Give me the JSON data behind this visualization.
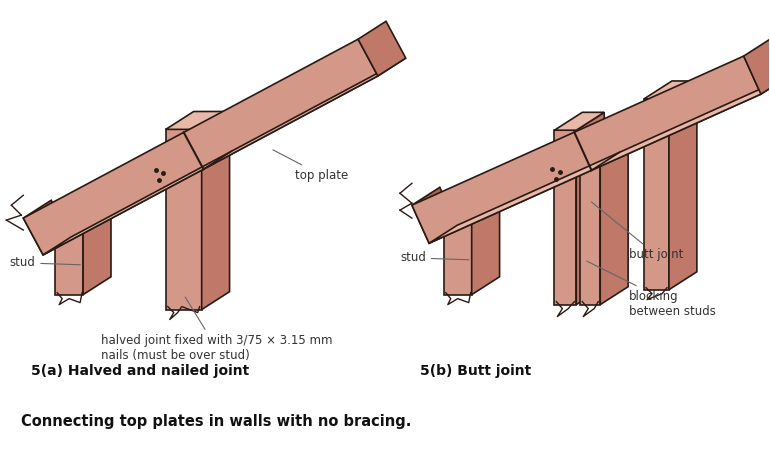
{
  "background_color": "#ffffff",
  "fig_width": 7.7,
  "fig_height": 4.73,
  "dpi": 100,
  "label_5a": "5(a) Halved and nailed joint",
  "label_5b": "5(b) Butt joint",
  "caption": "Connecting top plates in walls with no bracing.",
  "wood_light": "#e8b8a8",
  "wood_mid": "#d49888",
  "wood_dark": "#c07868",
  "wood_darker": "#a86050",
  "outline_color": "#2a1a14",
  "annotation_color": "#333333",
  "arrow_color": "#666666"
}
